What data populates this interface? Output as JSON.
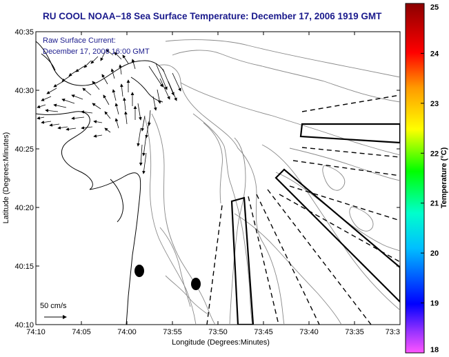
{
  "title": "RU COOL  NOAA−18  Sea Surface Temperature:  December 17, 2006 1919 GMT",
  "current_annotation": {
    "line1": "Raw Surface Current:",
    "line2": "December 17, 2006 16:00 GMT"
  },
  "axes": {
    "xlabel": "Longitude (Degrees:Minutes)",
    "ylabel": "Latitude (Degrees:Minutes)",
    "x_ticks": [
      "74:10",
      "74:05",
      "74:00",
      "73:55",
      "73:50",
      "73:45",
      "73:40",
      "73:35",
      "73:3"
    ],
    "y_ticks": [
      "40:35",
      "40:30",
      "40:25",
      "40:20",
      "40:15",
      "40:10"
    ]
  },
  "colorbar": {
    "label": "Temperature (°C)",
    "min": 18,
    "max": 25,
    "ticks": [
      "25",
      "24",
      "23",
      "22",
      "21",
      "20",
      "19",
      "18"
    ],
    "colors": [
      "#ff55ff",
      "#0000ff",
      "#00ffff",
      "#00ff00",
      "#ffff00",
      "#ff8800",
      "#ff0000",
      "#8b0000"
    ]
  },
  "scale_bar": {
    "label": "50 cm/s"
  },
  "map_colors": {
    "coast": "#000000",
    "bathymetry": "#888888",
    "vectors": "#000000"
  }
}
